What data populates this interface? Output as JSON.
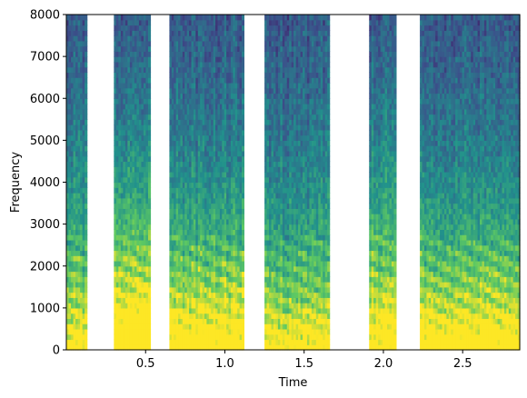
{
  "chart_data": {
    "type": "heatmap",
    "subtype": "spectrogram",
    "title": "",
    "xlabel": "Time",
    "ylabel": "Frequency",
    "xlim": [
      0.0,
      2.86
    ],
    "ylim": [
      0,
      8000
    ],
    "xticks": [
      0.5,
      1.0,
      1.5,
      2.0,
      2.5
    ],
    "xtick_labels": [
      "0.5",
      "1.0",
      "1.5",
      "2.0",
      "2.5"
    ],
    "yticks": [
      0,
      1000,
      2000,
      3000,
      4000,
      5000,
      6000,
      7000,
      8000
    ],
    "ytick_labels": [
      "0",
      "1000",
      "2000",
      "3000",
      "4000",
      "5000",
      "6000",
      "7000",
      "8000"
    ],
    "colormap": "viridis",
    "grid": false,
    "silent_gaps": [
      {
        "start": 0.13,
        "end": 0.3
      },
      {
        "start": 0.53,
        "end": 0.65
      },
      {
        "start": 1.12,
        "end": 1.25
      },
      {
        "start": 1.66,
        "end": 1.91
      },
      {
        "start": 2.08,
        "end": 2.23
      }
    ],
    "voiced_segments": [
      {
        "start": 0.0,
        "end": 0.13,
        "energy_low": 0.72,
        "energy_high": 0.45
      },
      {
        "start": 0.3,
        "end": 0.53,
        "energy_low": 0.95,
        "energy_high": 0.55
      },
      {
        "start": 0.65,
        "end": 1.12,
        "energy_low": 0.88,
        "energy_high": 0.38
      },
      {
        "start": 1.25,
        "end": 1.66,
        "energy_low": 0.78,
        "energy_high": 0.3
      },
      {
        "start": 1.91,
        "end": 2.08,
        "energy_low": 0.7,
        "energy_high": 0.62
      },
      {
        "start": 2.23,
        "end": 2.86,
        "energy_low": 0.92,
        "energy_high": 0.28
      }
    ]
  }
}
